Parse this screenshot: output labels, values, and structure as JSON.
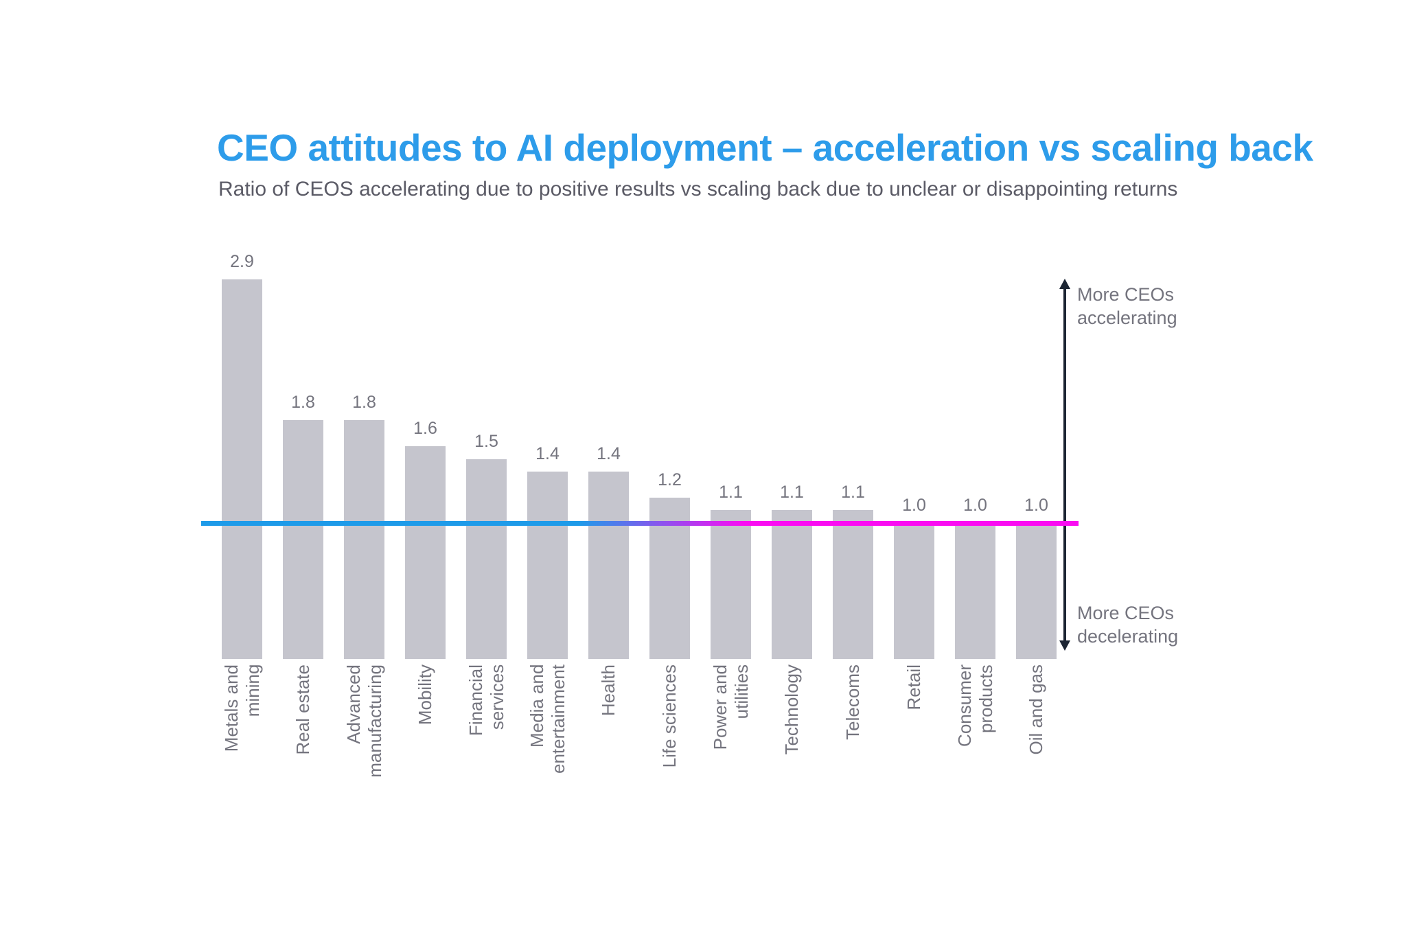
{
  "chart_data": {
    "type": "bar",
    "title": "CEO attitudes to AI deployment – acceleration vs scaling back",
    "subtitle": "Ratio of CEOS accelerating due to positive results vs scaling back due to unclear or disappointing returns",
    "categories": [
      "Metals and\nmining",
      "Real estate",
      "Advanced\nmanufacturing",
      "Mobility",
      "Financial\nservices",
      "Media and\nentertainment",
      "Health",
      "Life sciences",
      "Power and\nutilities",
      "Technology",
      "Telecoms",
      "Retail",
      "Consumer\nproducts",
      "Oil and gas"
    ],
    "values": [
      2.9,
      1.8,
      1.8,
      1.6,
      1.5,
      1.4,
      1.4,
      1.2,
      1.1,
      1.1,
      1.1,
      1.0,
      1.0,
      1.0
    ],
    "value_label_format": "0.0",
    "xlabel": "",
    "ylabel": "",
    "ylim": [
      0,
      3.0
    ],
    "grid": false,
    "legend": "none",
    "category_labels_rotated_degrees": 90,
    "reference_line": {
      "value": 1.0,
      "gradient_left_color": "#1E9BE9",
      "gradient_right_color": "#FA0CF2"
    },
    "annotations": {
      "up": "More CEOs\naccelerating",
      "down": "More CEOs\ndecelerating"
    },
    "colors": {
      "title": "#2D9CEA",
      "subtitle": "#5B5B66",
      "bar": "#C5C5CD",
      "value_label": "#74747E",
      "category_label": "#74747E",
      "arrow": "#1C2533",
      "annotation_text": "#74747E",
      "background": "#FFFFFF"
    }
  }
}
